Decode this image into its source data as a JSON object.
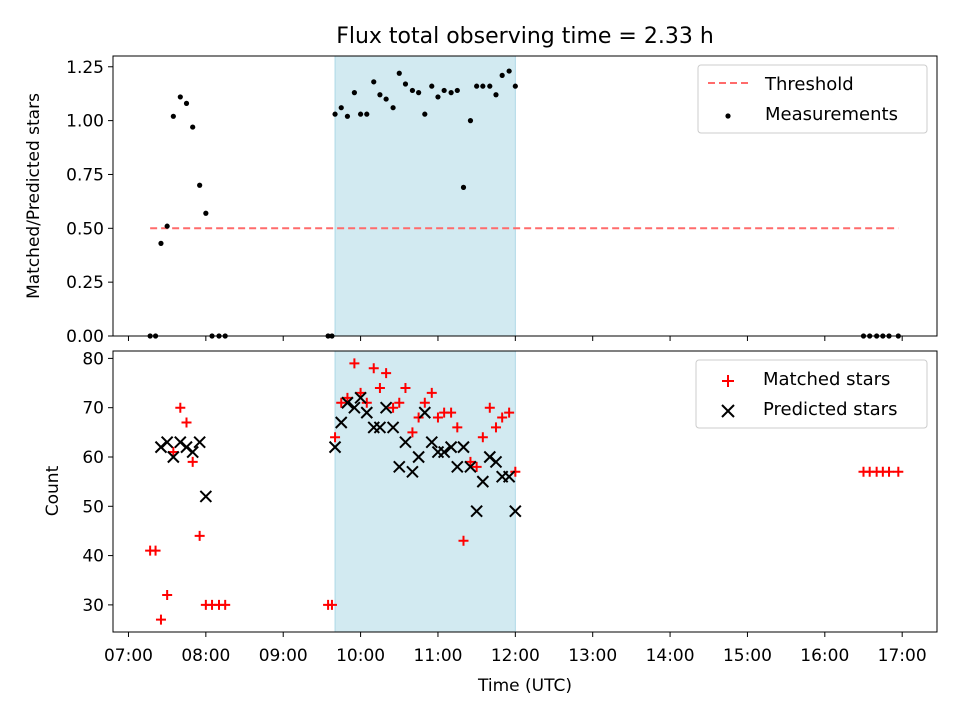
{
  "chart_data": [
    {
      "type": "scatter",
      "title": "Flux total observing time = 2.33 h",
      "xlabel": "",
      "ylabel": "Matched/Predicted stars",
      "xlim": [
        6.8,
        17.45
      ],
      "ylim": [
        0,
        1.3
      ],
      "yticks": [
        0.0,
        0.25,
        0.5,
        0.75,
        1.0,
        1.25
      ],
      "ytick_labels": [
        "0.00",
        "0.25",
        "0.50",
        "0.75",
        "1.00",
        "1.25"
      ],
      "shaded_span": {
        "start": 9.67,
        "end": 12.0,
        "color": "#add8e6"
      },
      "legend_position": "upper right",
      "series": [
        {
          "name": "Threshold",
          "kind": "dashed-line",
          "color": "#ff6b6b",
          "x": [
            7.28,
            16.95
          ],
          "y": [
            0.5,
            0.5
          ]
        },
        {
          "name": "Measurements",
          "kind": "dots",
          "color": "#000000",
          "x": [
            7.28,
            7.35,
            7.42,
            7.5,
            7.58,
            7.67,
            7.75,
            7.83,
            7.92,
            8.0,
            8.08,
            8.17,
            8.25,
            9.58,
            9.63,
            9.67,
            9.75,
            9.83,
            9.92,
            10.0,
            10.08,
            10.17,
            10.25,
            10.33,
            10.42,
            10.5,
            10.58,
            10.67,
            10.75,
            10.83,
            10.92,
            11.0,
            11.08,
            11.17,
            11.25,
            11.33,
            11.42,
            11.5,
            11.58,
            11.67,
            11.75,
            11.83,
            11.92,
            12.0,
            16.5,
            16.58,
            16.67,
            16.75,
            16.83,
            16.95
          ],
          "y": [
            0.0,
            0.0,
            0.43,
            0.51,
            1.02,
            1.11,
            1.08,
            0.97,
            0.7,
            0.57,
            0.0,
            0.0,
            0.0,
            0.0,
            0.0,
            1.03,
            1.06,
            1.02,
            1.13,
            1.03,
            1.03,
            1.18,
            1.12,
            1.1,
            1.06,
            1.22,
            1.17,
            1.14,
            1.13,
            1.03,
            1.16,
            1.11,
            1.14,
            1.13,
            1.14,
            0.69,
            1.0,
            1.16,
            1.16,
            1.16,
            1.12,
            1.21,
            1.23,
            1.16,
            0.0,
            0.0,
            0.0,
            0.0,
            0.0,
            0.0
          ]
        }
      ]
    },
    {
      "type": "scatter",
      "title": "",
      "xlabel": "Time (UTC)",
      "ylabel": "Count",
      "xlim": [
        6.8,
        17.45
      ],
      "ylim": [
        24.5,
        81.5
      ],
      "xticks": [
        7,
        8,
        9,
        10,
        11,
        12,
        13,
        14,
        15,
        16,
        17
      ],
      "xtick_labels": [
        "07:00",
        "08:00",
        "09:00",
        "10:00",
        "11:00",
        "12:00",
        "13:00",
        "14:00",
        "15:00",
        "16:00",
        "17:00"
      ],
      "yticks": [
        30,
        40,
        50,
        60,
        70,
        80
      ],
      "ytick_labels": [
        "30",
        "40",
        "50",
        "60",
        "70",
        "80"
      ],
      "shaded_span": {
        "start": 9.67,
        "end": 12.0,
        "color": "#add8e6"
      },
      "legend_position": "upper right",
      "series": [
        {
          "name": "Matched stars",
          "kind": "plus",
          "color": "#ff0000",
          "x": [
            7.28,
            7.35,
            7.42,
            7.5,
            7.58,
            7.67,
            7.75,
            7.83,
            7.92,
            8.0,
            8.08,
            8.17,
            8.25,
            9.58,
            9.63,
            9.67,
            9.75,
            9.83,
            9.92,
            10.0,
            10.08,
            10.17,
            10.25,
            10.33,
            10.42,
            10.5,
            10.58,
            10.67,
            10.75,
            10.83,
            10.92,
            11.0,
            11.08,
            11.17,
            11.25,
            11.33,
            11.42,
            11.5,
            11.58,
            11.67,
            11.75,
            11.83,
            11.92,
            12.0,
            16.5,
            16.58,
            16.67,
            16.75,
            16.83,
            16.95
          ],
          "y": [
            41,
            41,
            27,
            32,
            61,
            70,
            67,
            59,
            44,
            30,
            30,
            30,
            30,
            30,
            30,
            64,
            71,
            72,
            79,
            73,
            71,
            78,
            74,
            77,
            70,
            71,
            74,
            65,
            68,
            71,
            73,
            68,
            69,
            69,
            66,
            43,
            59,
            58,
            64,
            70,
            66,
            68,
            69,
            57,
            57,
            57,
            57,
            57,
            57,
            57
          ]
        },
        {
          "name": "Predicted stars",
          "kind": "x",
          "color": "#000000",
          "x": [
            7.42,
            7.5,
            7.58,
            7.67,
            7.75,
            7.83,
            7.92,
            8.0,
            9.67,
            9.75,
            9.83,
            9.92,
            10.0,
            10.08,
            10.17,
            10.25,
            10.33,
            10.42,
            10.5,
            10.58,
            10.67,
            10.75,
            10.83,
            10.92,
            11.0,
            11.08,
            11.17,
            11.25,
            11.33,
            11.42,
            11.5,
            11.58,
            11.67,
            11.75,
            11.83,
            11.92,
            12.0
          ],
          "y": [
            62,
            63,
            60,
            63,
            62,
            61,
            63,
            52,
            62,
            67,
            71,
            70,
            72,
            69,
            66,
            66,
            70,
            66,
            58,
            63,
            57,
            60,
            69,
            63,
            61,
            61,
            62,
            58,
            62,
            58,
            49,
            55,
            60,
            59,
            56,
            56,
            49
          ]
        }
      ]
    }
  ]
}
